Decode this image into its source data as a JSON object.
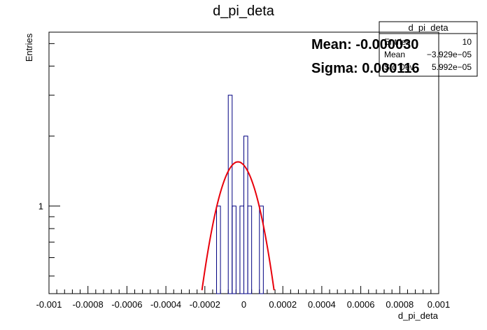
{
  "chart_data": {
    "type": "histogram",
    "title": "d_pi_deta",
    "xlabel": "d_pi_deta",
    "ylabel": "Entries",
    "xlim": [
      -0.001,
      0.001
    ],
    "ylog": true,
    "ylim": [
      0.42,
      5.6
    ],
    "x_tick_labels": [
      "-0.001",
      "-0.0008",
      "-0.0006",
      "-0.0004",
      "-0.0002",
      "0",
      "0.0002",
      "0.0004",
      "0.0006",
      "0.0008",
      "0.001"
    ],
    "x_tick_values": [
      -0.001,
      -0.0008,
      -0.0006,
      -0.0004,
      -0.0002,
      0,
      0.0002,
      0.0004,
      0.0006,
      0.0008,
      0.001
    ],
    "y_tick_labels": [
      "1"
    ],
    "bin_width": 2e-05,
    "bins": [
      {
        "x_low": -0.00014,
        "count": 1
      },
      {
        "x_low": -8e-05,
        "count": 3
      },
      {
        "x_low": -6e-05,
        "count": 1
      },
      {
        "x_low": -2e-05,
        "count": 1
      },
      {
        "x_low": -0.0,
        "count": 2
      },
      {
        "x_low": 2e-05,
        "count": 1
      },
      {
        "x_low": 8e-05,
        "count": 1
      }
    ],
    "fit": {
      "type": "gaussian",
      "constant": 1.55,
      "mean": -3e-05,
      "sigma": 0.000116,
      "color": "#e8000b"
    },
    "annotations": {
      "mean_text": "Mean: -0.000030",
      "sigma_text": "Sigma: 0.000116"
    },
    "stats_box": {
      "title": "d_pi_deta",
      "rows": [
        {
          "label": "Entries",
          "value": "10"
        },
        {
          "label": "Mean",
          "value": "−3.929e−05"
        },
        {
          "label": "Std Dev",
          "value": "5.992e−05"
        }
      ]
    },
    "colors": {
      "histogram_line": "#000080",
      "fit_line": "#e8000b",
      "axis": "#000000"
    }
  }
}
